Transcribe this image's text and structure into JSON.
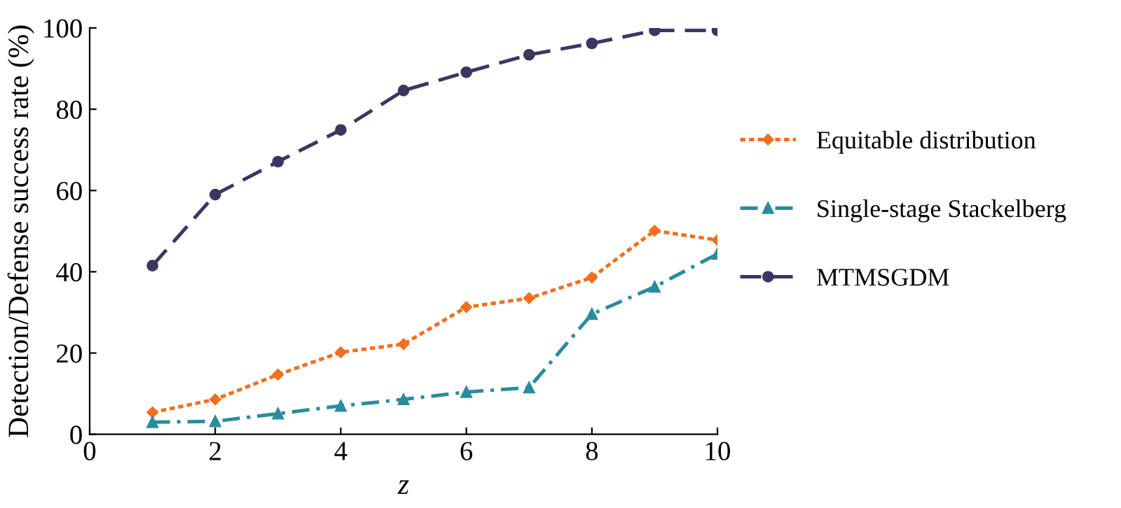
{
  "chart_data": {
    "type": "line",
    "xlabel": "z",
    "ylabel": "Detection/Defense success rate (%)",
    "x": [
      1,
      2,
      3,
      4,
      5,
      6,
      7,
      8,
      9,
      10
    ],
    "series": [
      {
        "name": "Equitable distribution",
        "color": "#f07020",
        "marker": "diamond",
        "line_style": "dotted",
        "values": [
          5.4,
          8.6,
          14.7,
          20.2,
          22.2,
          31.3,
          33.5,
          38.6,
          50.1,
          47.8
        ]
      },
      {
        "name": "Single-stage Stackelberg",
        "color": "#2a8c9c",
        "marker": "triangle",
        "line_style": "dashdot",
        "values": [
          3.0,
          3.2,
          5.1,
          7.0,
          8.6,
          10.4,
          11.5,
          29.6,
          36.3,
          44.4
        ]
      },
      {
        "name": "MTMSGDM",
        "color": "#3e3560",
        "marker": "circle",
        "line_style": "dashed",
        "values": [
          41.5,
          59.0,
          67.1,
          74.9,
          84.6,
          89.1,
          93.4,
          96.2,
          99.4,
          99.4
        ]
      }
    ],
    "xlim": [
      0,
      10
    ],
    "xticks": [
      0,
      2,
      4,
      6,
      8,
      10
    ],
    "ylim": [
      0,
      100
    ],
    "yticks": [
      0,
      20,
      40,
      60,
      80,
      100
    ],
    "grid": false,
    "legend": "right"
  }
}
